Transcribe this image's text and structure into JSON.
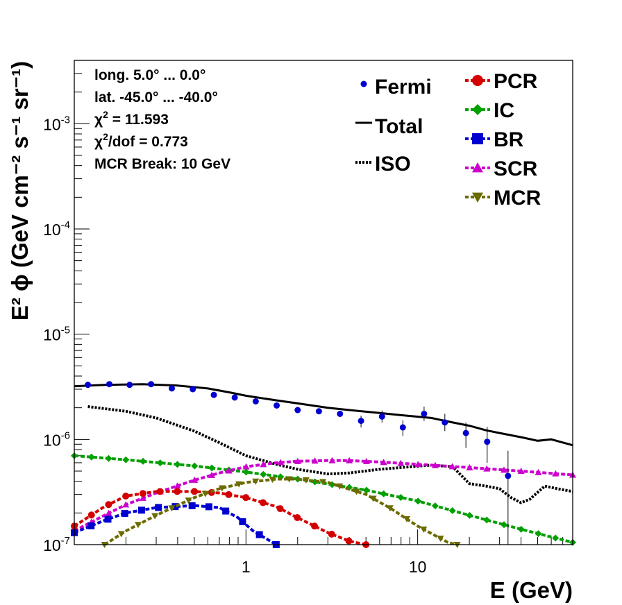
{
  "chart_data": {
    "type": "line",
    "xlabel": "E (GeV)",
    "ylabel": "E² ϕ (GeV cm⁻² s⁻¹ sr⁻¹)",
    "xscale": "log",
    "yscale": "log",
    "xlim": [
      0.1,
      80
    ],
    "ylim": [
      1e-07,
      0.004
    ],
    "x_tick_labels": [
      "1",
      "10"
    ],
    "y_tick_labels": [
      {
        "base": "10",
        "exp": "-7"
      },
      {
        "base": "10",
        "exp": "-6"
      },
      {
        "base": "10",
        "exp": "-5"
      },
      {
        "base": "10",
        "exp": "-4"
      },
      {
        "base": "10",
        "exp": "-3"
      }
    ],
    "info": [
      {
        "text": "long. 5.0° ... 0.0°"
      },
      {
        "text": "lat. -45.0° ... -40.0°"
      },
      {
        "pre": "χ",
        "sup": "2",
        "post": " = 11.593"
      },
      {
        "pre": "χ",
        "sup": "2",
        "post": "/dof = 0.773"
      },
      {
        "text": "MCR Break: 10 GeV"
      }
    ],
    "legend_left": [
      {
        "name": "Fermi",
        "style": "point"
      },
      {
        "name": "Total",
        "style": "solid"
      },
      {
        "name": "ISO",
        "style": "dotted"
      }
    ],
    "legend_right": [
      {
        "name": "PCR",
        "color": "#d40000",
        "marker": "circle"
      },
      {
        "name": "IC",
        "color": "#00a000",
        "marker": "diamond"
      },
      {
        "name": "BR",
        "color": "#0000d0",
        "marker": "square"
      },
      {
        "name": "SCR",
        "color": "#cc00cc",
        "marker": "triangle-up"
      },
      {
        "name": "MCR",
        "color": "#6b6b00",
        "marker": "triangle-down"
      }
    ],
    "fermi": {
      "color": "#0000d0",
      "x": [
        0.12,
        0.16,
        0.21,
        0.28,
        0.37,
        0.49,
        0.65,
        0.86,
        1.14,
        1.51,
        2.0,
        2.66,
        3.53,
        4.68,
        6.2,
        8.2,
        10.9,
        14.4,
        19.1,
        25.4,
        33.6,
        44.6,
        59.1,
        78.4
      ],
      "y": [
        3.3e-06,
        3.35e-06,
        3.3e-06,
        3.35e-06,
        3.05e-06,
        3e-06,
        2.65e-06,
        2.5e-06,
        2.3e-06,
        2.1e-06,
        1.9e-06,
        1.85e-06,
        1.75e-06,
        1.5e-06,
        1.65e-06,
        1.3e-06,
        1.75e-06,
        1.45e-06,
        1.15e-06,
        9.5e-07,
        4.5e-07,
        null,
        null,
        null
      ],
      "err_lo": [
        null,
        null,
        null,
        null,
        null,
        null,
        null,
        null,
        null,
        null,
        null,
        null,
        null,
        1.3e-06,
        1.45e-06,
        1.08e-06,
        1.5e-06,
        1.2e-06,
        8.3e-07,
        6e-07,
        1e-07,
        null,
        null,
        null
      ],
      "err_hi": [
        null,
        null,
        null,
        null,
        null,
        null,
        null,
        null,
        null,
        null,
        null,
        null,
        null,
        1.68e-06,
        1.88e-06,
        1.52e-06,
        2.05e-06,
        1.75e-06,
        1.45e-06,
        1.32e-06,
        7.8e-07,
        null,
        null,
        null
      ]
    },
    "series": [
      {
        "name": "Total",
        "color": "#000000",
        "dash": "solid",
        "x": [
          0.1,
          0.15,
          0.25,
          0.4,
          0.6,
          0.8,
          1.0,
          1.5,
          2.0,
          3.0,
          4.0,
          6.0,
          8.0,
          12.0,
          16.0,
          20.0,
          25.0,
          30.0,
          40.0,
          50.0,
          60.0,
          80.0
        ],
        "y": [
          3.2e-06,
          3.3e-06,
          3.35e-06,
          3.25e-06,
          3.05e-06,
          2.8e-06,
          2.6e-06,
          2.35e-06,
          2.2e-06,
          2e-06,
          1.9e-06,
          1.78e-06,
          1.7e-06,
          1.6e-06,
          1.45e-06,
          1.35e-06,
          1.22e-06,
          1.15e-06,
          1.05e-06,
          9.7e-07,
          1e-06,
          8.8e-07
        ]
      },
      {
        "name": "ISO",
        "color": "#000000",
        "dash": "dotted",
        "x": [
          0.12,
          0.2,
          0.3,
          0.5,
          0.7,
          1.0,
          1.5,
          2.0,
          3.0,
          4.0,
          6.0,
          8.0,
          12.0,
          16.0,
          20.0,
          25.0,
          30.0,
          35.0,
          40.0,
          45.0,
          55.0,
          65.0,
          80.0
        ],
        "y": [
          2.05e-06,
          1.85e-06,
          1.6e-06,
          1.2e-06,
          9.3e-07,
          7e-07,
          5.8e-07,
          5.2e-07,
          4.7e-07,
          4.8e-07,
          5.2e-07,
          5.4e-07,
          5.7e-07,
          5.5e-07,
          3.8e-07,
          3.6e-07,
          3.4e-07,
          2.8e-07,
          2.5e-07,
          2.7e-07,
          3.6e-07,
          3.4e-07,
          3.2e-07
        ]
      },
      {
        "name": "IC",
        "color": "#00a000",
        "dash": "dashed",
        "x": [
          0.1,
          0.2,
          0.5,
          1.0,
          2.0,
          5.0,
          10.0,
          20.0,
          40.0,
          80.0
        ],
        "y": [
          7e-07,
          6.4e-07,
          5.6e-07,
          4.9e-07,
          4.2e-07,
          3.3e-07,
          2.6e-07,
          1.9e-07,
          1.4e-07,
          1.05e-07
        ]
      },
      {
        "name": "SCR",
        "color": "#cc00cc",
        "dash": "dashed",
        "x": [
          0.1,
          0.15,
          0.2,
          0.3,
          0.5,
          0.7,
          1.0,
          1.5,
          2.0,
          3.0,
          4.0,
          6.0,
          10.0,
          20.0,
          40.0,
          80.0
        ],
        "y": [
          1.35e-07,
          1.9e-07,
          2.4e-07,
          3.1e-07,
          4.1e-07,
          4.8e-07,
          5.5e-07,
          6e-07,
          6.2e-07,
          6.3e-07,
          6.3e-07,
          6.1e-07,
          5.8e-07,
          5.4e-07,
          5e-07,
          4.6e-07
        ]
      },
      {
        "name": "PCR",
        "color": "#d40000",
        "dash": "dashed",
        "x": [
          0.1,
          0.15,
          0.2,
          0.3,
          0.5,
          0.7,
          1.0,
          1.5,
          2.0,
          3.0,
          4.0,
          5.0
        ],
        "y": [
          1.5e-07,
          2.3e-07,
          2.9e-07,
          3.2e-07,
          3.2e-07,
          3.1e-07,
          2.8e-07,
          2.3e-07,
          1.8e-07,
          1.3e-07,
          1.08e-07,
          1e-07
        ]
      },
      {
        "name": "BR",
        "color": "#0000d0",
        "dash": "dashed",
        "x": [
          0.1,
          0.15,
          0.2,
          0.3,
          0.5,
          0.7,
          0.9,
          1.1,
          1.3,
          1.5
        ],
        "y": [
          1.3e-07,
          1.7e-07,
          2e-07,
          2.25e-07,
          2.35e-07,
          2.25e-07,
          1.8e-07,
          1.35e-07,
          1.15e-07,
          1e-07
        ]
      },
      {
        "name": "MCR",
        "color": "#6b6b00",
        "dash": "dashed",
        "x": [
          0.15,
          0.2,
          0.3,
          0.5,
          0.7,
          1.0,
          1.5,
          2.0,
          3.0,
          5.0,
          7.0,
          10.0,
          15.0,
          17.0
        ],
        "y": [
          1e-07,
          1.35e-07,
          1.9e-07,
          2.8e-07,
          3.4e-07,
          3.9e-07,
          4.2e-07,
          4.2e-07,
          3.9e-07,
          3e-07,
          2.2e-07,
          1.5e-07,
          1.05e-07,
          1e-07
        ]
      }
    ]
  }
}
